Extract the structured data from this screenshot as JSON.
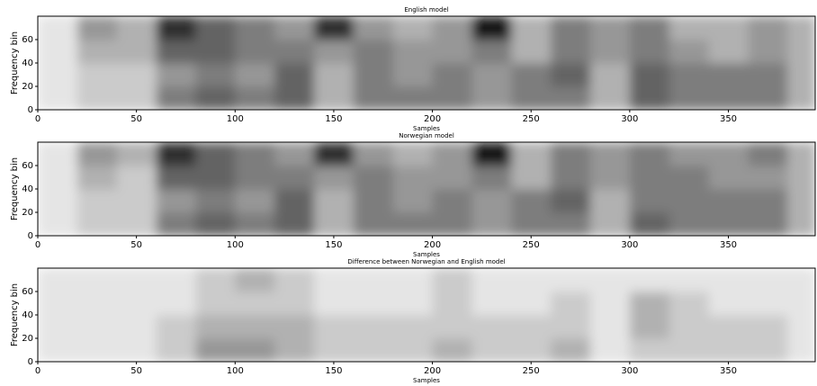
{
  "chart_data": [
    {
      "type": "heatmap",
      "title": "English model",
      "x_label": "Samples",
      "y_label": "Frequency bin",
      "cmap": "Greys",
      "xlim": [
        0,
        394
      ],
      "ylim": [
        0,
        80
      ],
      "xticks": [
        0,
        50,
        100,
        150,
        200,
        250,
        300,
        350
      ],
      "yticks": [
        0,
        20,
        40,
        60
      ],
      "x": [
        0,
        20,
        40,
        60,
        80,
        100,
        120,
        140,
        160,
        180,
        200,
        220,
        240,
        260,
        280,
        300,
        320,
        340,
        360,
        380
      ],
      "y": [
        0,
        20,
        40,
        60
      ],
      "z": [
        [
          1,
          2,
          2,
          5,
          6,
          5,
          6,
          3,
          5,
          5,
          5,
          4,
          5,
          5,
          3,
          6,
          5,
          5,
          5,
          3
        ],
        [
          1,
          2,
          2,
          4,
          5,
          4,
          6,
          3,
          5,
          4,
          5,
          4,
          5,
          6,
          3,
          6,
          5,
          5,
          5,
          3
        ],
        [
          1,
          3,
          3,
          6,
          6,
          5,
          5,
          4,
          5,
          4,
          4,
          5,
          3,
          5,
          4,
          5,
          4,
          3,
          4,
          3
        ],
        [
          1,
          4,
          3,
          8,
          6,
          5,
          4,
          8,
          4,
          3,
          4,
          9,
          3,
          5,
          4,
          5,
          3,
          3,
          4,
          3
        ]
      ]
    },
    {
      "type": "heatmap",
      "title": "Norwegian model",
      "x_label": "Samples",
      "y_label": "Frequency bin",
      "cmap": "Greys",
      "xlim": [
        0,
        394
      ],
      "ylim": [
        0,
        80
      ],
      "xticks": [
        0,
        50,
        100,
        150,
        200,
        250,
        300,
        350
      ],
      "yticks": [
        0,
        20,
        40,
        60
      ],
      "x": [
        0,
        20,
        40,
        60,
        80,
        100,
        120,
        140,
        160,
        180,
        200,
        220,
        240,
        260,
        280,
        300,
        320,
        340,
        360,
        380
      ],
      "y": [
        0,
        20,
        40,
        60
      ],
      "z": [
        [
          1,
          2,
          2,
          5,
          6,
          5,
          6,
          3,
          5,
          5,
          5,
          4,
          5,
          5,
          3,
          6,
          5,
          5,
          5,
          3
        ],
        [
          1,
          2,
          2,
          4,
          5,
          4,
          6,
          3,
          5,
          4,
          5,
          4,
          5,
          6,
          3,
          5,
          5,
          5,
          5,
          3
        ],
        [
          1,
          3,
          2,
          6,
          6,
          5,
          5,
          4,
          5,
          4,
          4,
          5,
          3,
          5,
          4,
          5,
          5,
          4,
          4,
          3
        ],
        [
          1,
          4,
          3,
          8,
          6,
          5,
          4,
          8,
          4,
          3,
          4,
          9,
          3,
          5,
          4,
          5,
          4,
          4,
          5,
          3
        ]
      ]
    },
    {
      "type": "heatmap",
      "title": "Difference between Norwegian and English model",
      "x_label": "Samples",
      "y_label": "Frequency bin",
      "cmap": "Greys",
      "xlim": [
        0,
        394
      ],
      "ylim": [
        0,
        80
      ],
      "xticks": [
        0,
        50,
        100,
        150,
        200,
        250,
        300,
        350
      ],
      "yticks": [
        0,
        20,
        40,
        60
      ],
      "x": [
        0,
        20,
        40,
        60,
        80,
        100,
        120,
        140,
        160,
        180,
        200,
        220,
        240,
        260,
        280,
        300,
        320,
        340,
        360,
        380
      ],
      "y": [
        0,
        20,
        40,
        60
      ],
      "z": [
        [
          1,
          1,
          1,
          2,
          4,
          4,
          3,
          2,
          2,
          2,
          3,
          2,
          2,
          3,
          1,
          2,
          2,
          2,
          2,
          1
        ],
        [
          1,
          1,
          1,
          2,
          3,
          3,
          3,
          2,
          2,
          2,
          2,
          2,
          2,
          2,
          1,
          3,
          2,
          2,
          2,
          1
        ],
        [
          1,
          1,
          1,
          1,
          2,
          2,
          2,
          1,
          1,
          1,
          2,
          1,
          1,
          2,
          1,
          3,
          2,
          1,
          1,
          1
        ],
        [
          1,
          1,
          1,
          1,
          2,
          3,
          2,
          1,
          1,
          1,
          2,
          1,
          1,
          1,
          1,
          1,
          1,
          1,
          1,
          1
        ]
      ]
    }
  ]
}
